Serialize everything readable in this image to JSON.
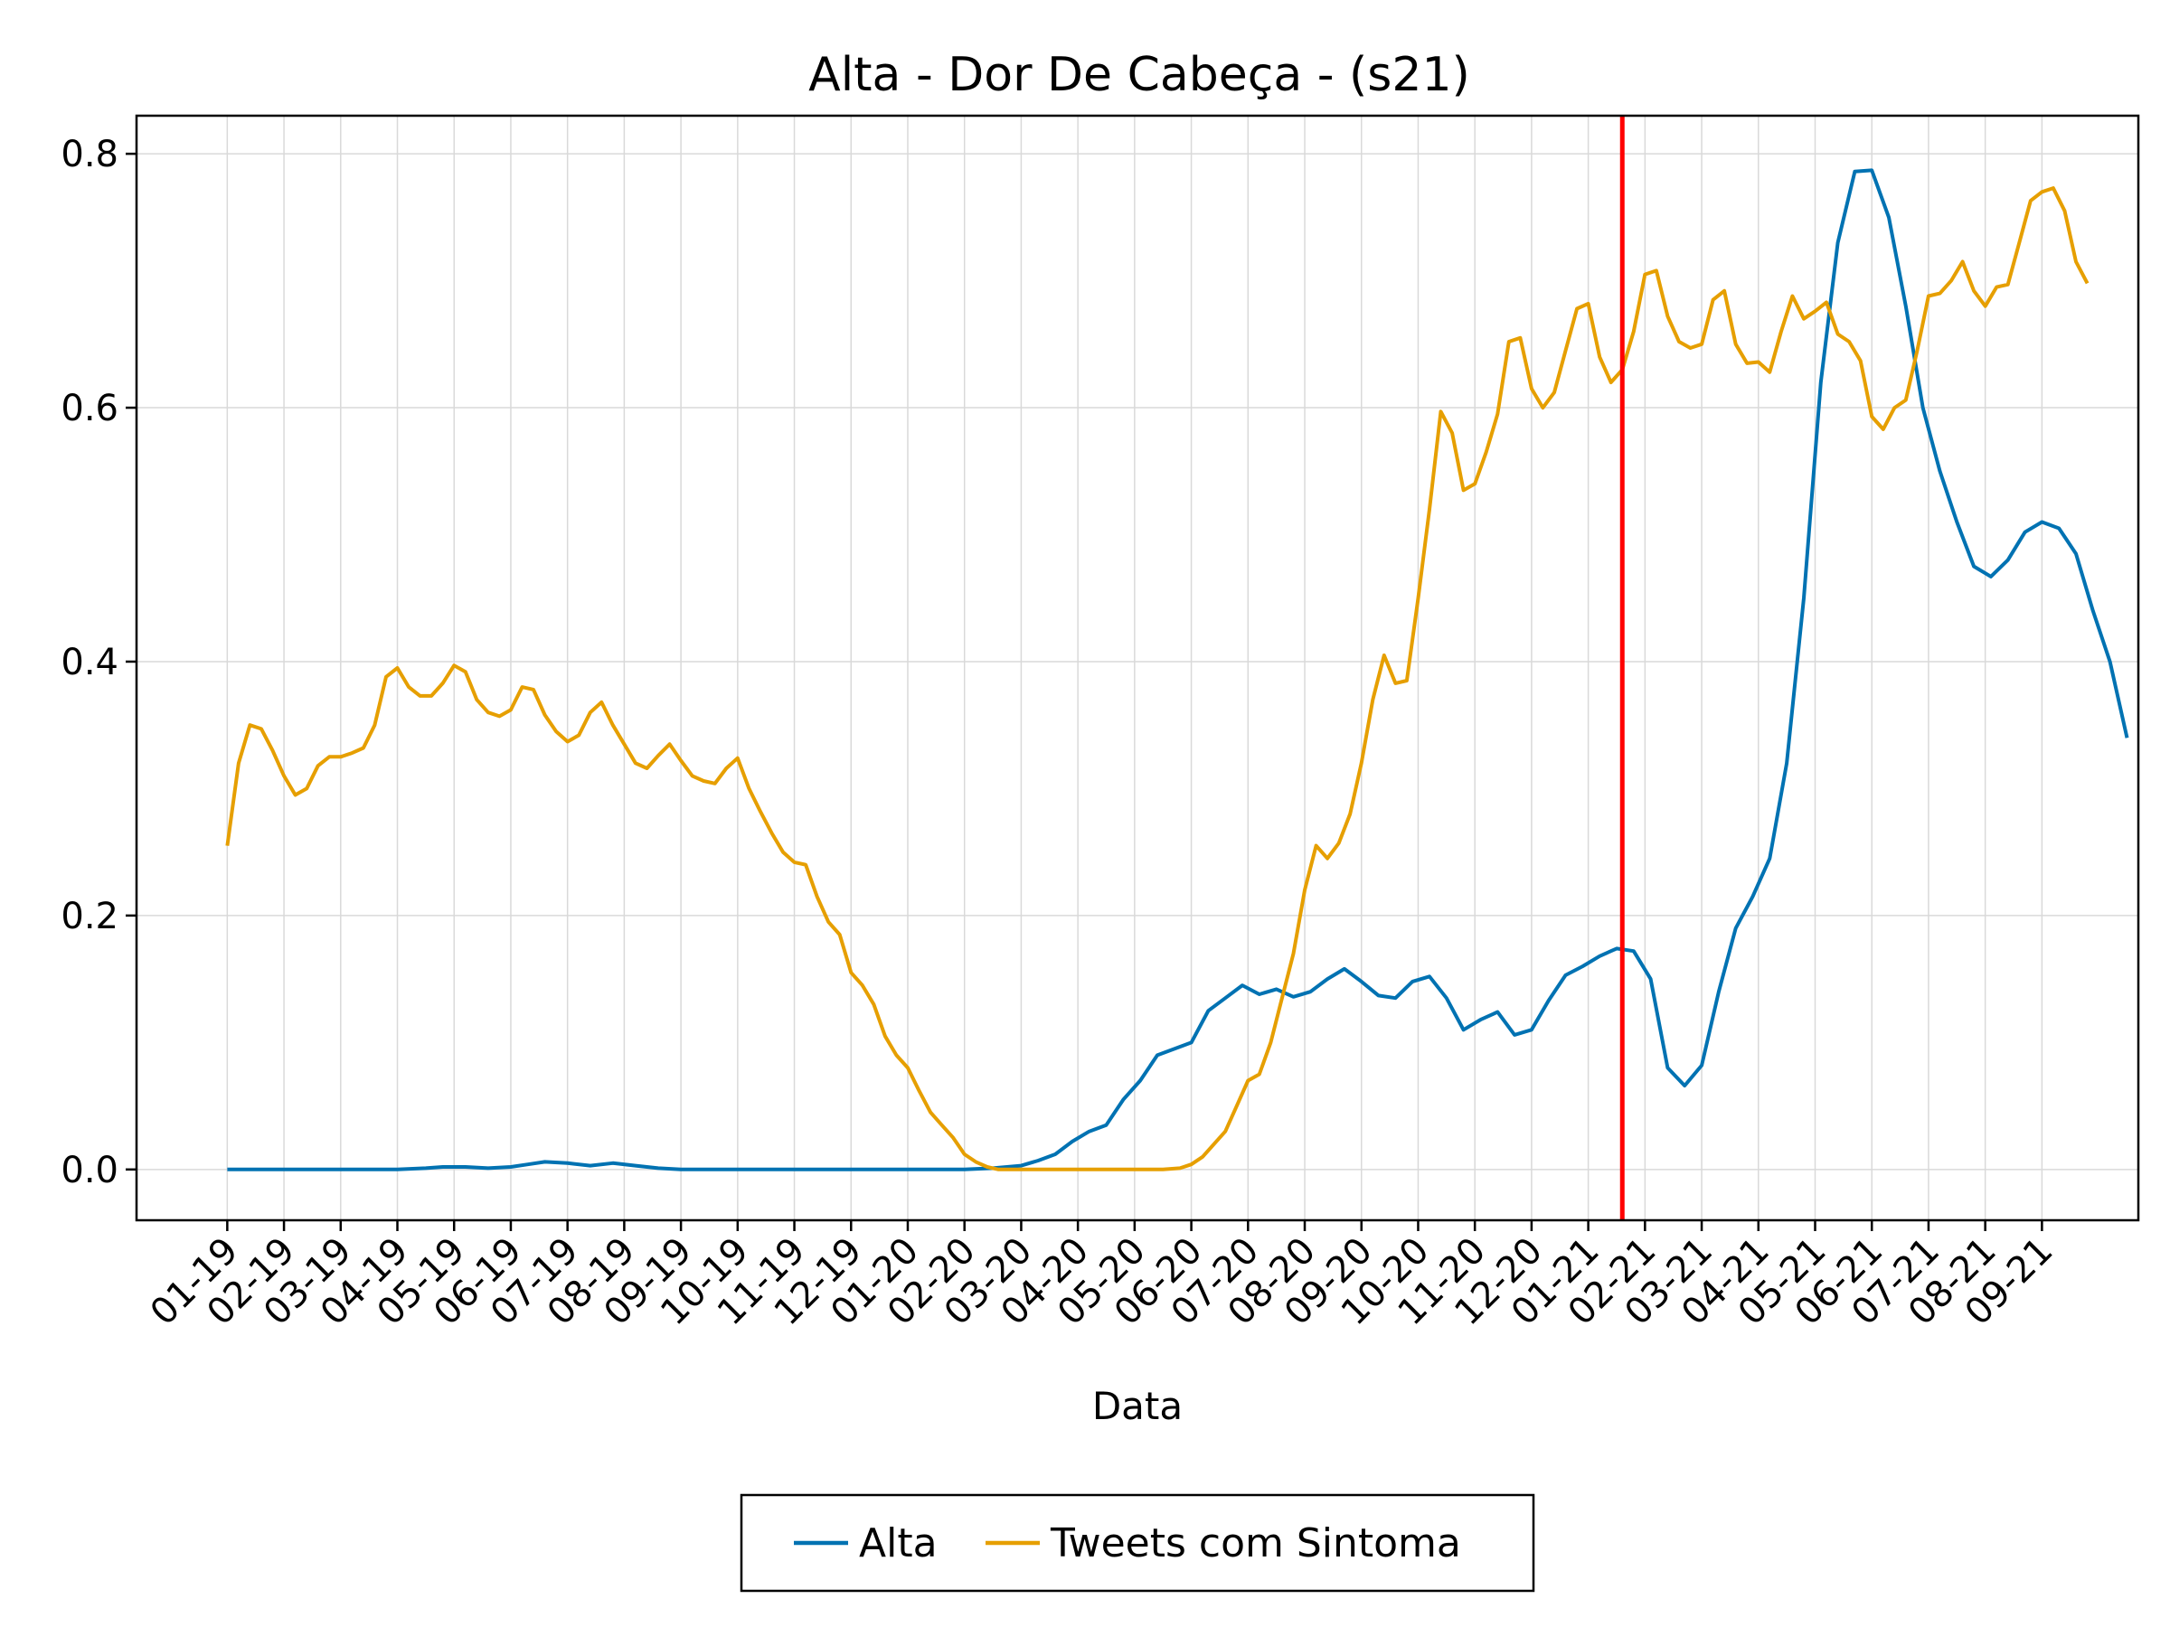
{
  "chart_data": {
    "type": "line",
    "title": "Alta - Dor De Cabeça - (s21)",
    "xlabel": "Data",
    "ylabel": "",
    "ylim": [
      -0.04,
      0.83
    ],
    "y_ticks": [
      "0.0",
      "0.2",
      "0.4",
      "0.6",
      "0.8"
    ],
    "y_tick_values": [
      0.0,
      0.2,
      0.4,
      0.6,
      0.8
    ],
    "x_range": [
      -1.6,
      33.7
    ],
    "categories": [
      "01-19",
      "02-19",
      "03-19",
      "04-19",
      "05-19",
      "06-19",
      "07-19",
      "08-19",
      "09-19",
      "10-19",
      "11-19",
      "12-19",
      "01-20",
      "02-20",
      "03-20",
      "04-20",
      "05-20",
      "06-20",
      "07-20",
      "08-20",
      "09-20",
      "10-20",
      "11-20",
      "12-20",
      "01-21",
      "02-21",
      "03-21",
      "04-21",
      "05-21",
      "06-21",
      "07-21",
      "08-21",
      "09-21"
    ],
    "vline": {
      "x": 24.6,
      "color": "#ff0000"
    },
    "grid": true,
    "legend_position": "bottom-center",
    "series": [
      {
        "name": "Alta",
        "color": "#0072b2",
        "points": [
          [
            0,
            0
          ],
          [
            0.5,
            0
          ],
          [
            1,
            0
          ],
          [
            1.5,
            0
          ],
          [
            2,
            0
          ],
          [
            2.5,
            0
          ],
          [
            3,
            0
          ],
          [
            3.5,
            0.001
          ],
          [
            3.8,
            0.002
          ],
          [
            4.2,
            0.002
          ],
          [
            4.6,
            0.001
          ],
          [
            5,
            0.002
          ],
          [
            5.3,
            0.004
          ],
          [
            5.6,
            0.006
          ],
          [
            6,
            0.005
          ],
          [
            6.4,
            0.003
          ],
          [
            6.8,
            0.005
          ],
          [
            7.2,
            0.003
          ],
          [
            7.6,
            0.001
          ],
          [
            8,
            0
          ],
          [
            8.5,
            0
          ],
          [
            9,
            0
          ],
          [
            10,
            0
          ],
          [
            11,
            0
          ],
          [
            12,
            0
          ],
          [
            12.5,
            0
          ],
          [
            13,
            0
          ],
          [
            13.5,
            0.001
          ],
          [
            14,
            0.003
          ],
          [
            14.3,
            0.007
          ],
          [
            14.6,
            0.012
          ],
          [
            14.9,
            0.022
          ],
          [
            15.2,
            0.03
          ],
          [
            15.5,
            0.035
          ],
          [
            15.8,
            0.055
          ],
          [
            16.1,
            0.07
          ],
          [
            16.4,
            0.09
          ],
          [
            16.7,
            0.095
          ],
          [
            17,
            0.1
          ],
          [
            17.3,
            0.125
          ],
          [
            17.6,
            0.135
          ],
          [
            17.9,
            0.145
          ],
          [
            18.2,
            0.138
          ],
          [
            18.5,
            0.142
          ],
          [
            18.8,
            0.136
          ],
          [
            19.1,
            0.14
          ],
          [
            19.4,
            0.15
          ],
          [
            19.7,
            0.158
          ],
          [
            20,
            0.148
          ],
          [
            20.3,
            0.137
          ],
          [
            20.6,
            0.135
          ],
          [
            20.9,
            0.148
          ],
          [
            21.2,
            0.152
          ],
          [
            21.5,
            0.135
          ],
          [
            21.8,
            0.11
          ],
          [
            22.1,
            0.118
          ],
          [
            22.4,
            0.124
          ],
          [
            22.7,
            0.106
          ],
          [
            23,
            0.11
          ],
          [
            23.3,
            0.133
          ],
          [
            23.6,
            0.153
          ],
          [
            23.9,
            0.16
          ],
          [
            24.2,
            0.168
          ],
          [
            24.5,
            0.174
          ],
          [
            24.8,
            0.172
          ],
          [
            25.1,
            0.15
          ],
          [
            25.4,
            0.08
          ],
          [
            25.7,
            0.066
          ],
          [
            26,
            0.082
          ],
          [
            26.3,
            0.14
          ],
          [
            26.6,
            0.19
          ],
          [
            26.9,
            0.215
          ],
          [
            27.2,
            0.245
          ],
          [
            27.5,
            0.32
          ],
          [
            27.8,
            0.45
          ],
          [
            28.1,
            0.62
          ],
          [
            28.4,
            0.73
          ],
          [
            28.7,
            0.786
          ],
          [
            29,
            0.787
          ],
          [
            29.3,
            0.75
          ],
          [
            29.6,
            0.68
          ],
          [
            29.9,
            0.6
          ],
          [
            30.2,
            0.55
          ],
          [
            30.5,
            0.51
          ],
          [
            30.8,
            0.475
          ],
          [
            31.1,
            0.467
          ],
          [
            31.4,
            0.48
          ],
          [
            31.7,
            0.502
          ],
          [
            32,
            0.51
          ],
          [
            32.3,
            0.505
          ],
          [
            32.6,
            0.485
          ],
          [
            32.9,
            0.44
          ],
          [
            33.2,
            0.4
          ],
          [
            33.5,
            0.34
          ]
        ]
      },
      {
        "name": "Tweets com Sintoma",
        "color": "#e69f00",
        "points": [
          [
            0,
            0.255
          ],
          [
            0.2,
            0.32
          ],
          [
            0.4,
            0.35
          ],
          [
            0.6,
            0.347
          ],
          [
            0.8,
            0.33
          ],
          [
            1,
            0.31
          ],
          [
            1.2,
            0.295
          ],
          [
            1.4,
            0.3
          ],
          [
            1.6,
            0.318
          ],
          [
            1.8,
            0.325
          ],
          [
            2,
            0.325
          ],
          [
            2.2,
            0.328
          ],
          [
            2.4,
            0.332
          ],
          [
            2.6,
            0.35
          ],
          [
            2.8,
            0.388
          ],
          [
            3,
            0.395
          ],
          [
            3.2,
            0.38
          ],
          [
            3.4,
            0.373
          ],
          [
            3.6,
            0.373
          ],
          [
            3.8,
            0.383
          ],
          [
            4,
            0.397
          ],
          [
            4.2,
            0.392
          ],
          [
            4.4,
            0.37
          ],
          [
            4.6,
            0.36
          ],
          [
            4.8,
            0.357
          ],
          [
            5,
            0.362
          ],
          [
            5.2,
            0.38
          ],
          [
            5.4,
            0.378
          ],
          [
            5.6,
            0.358
          ],
          [
            5.8,
            0.345
          ],
          [
            6,
            0.337
          ],
          [
            6.2,
            0.342
          ],
          [
            6.4,
            0.36
          ],
          [
            6.6,
            0.368
          ],
          [
            6.8,
            0.35
          ],
          [
            7,
            0.335
          ],
          [
            7.2,
            0.32
          ],
          [
            7.4,
            0.316
          ],
          [
            7.6,
            0.326
          ],
          [
            7.8,
            0.335
          ],
          [
            8,
            0.322
          ],
          [
            8.2,
            0.31
          ],
          [
            8.4,
            0.306
          ],
          [
            8.6,
            0.304
          ],
          [
            8.8,
            0.316
          ],
          [
            9,
            0.324
          ],
          [
            9.2,
            0.3
          ],
          [
            9.4,
            0.282
          ],
          [
            9.6,
            0.265
          ],
          [
            9.8,
            0.25
          ],
          [
            10,
            0.242
          ],
          [
            10.2,
            0.24
          ],
          [
            10.4,
            0.215
          ],
          [
            10.6,
            0.195
          ],
          [
            10.8,
            0.185
          ],
          [
            11,
            0.155
          ],
          [
            11.2,
            0.145
          ],
          [
            11.4,
            0.13
          ],
          [
            11.6,
            0.105
          ],
          [
            11.8,
            0.09
          ],
          [
            12,
            0.08
          ],
          [
            12.2,
            0.062
          ],
          [
            12.4,
            0.045
          ],
          [
            12.6,
            0.035
          ],
          [
            12.8,
            0.025
          ],
          [
            13,
            0.012
          ],
          [
            13.2,
            0.006
          ],
          [
            13.4,
            0.002
          ],
          [
            13.6,
            0
          ],
          [
            14,
            0
          ],
          [
            15,
            0
          ],
          [
            16,
            0
          ],
          [
            16.5,
            0
          ],
          [
            16.8,
            0.001
          ],
          [
            17,
            0.004
          ],
          [
            17.2,
            0.01
          ],
          [
            17.4,
            0.02
          ],
          [
            17.6,
            0.03
          ],
          [
            17.8,
            0.05
          ],
          [
            18,
            0.07
          ],
          [
            18.2,
            0.075
          ],
          [
            18.4,
            0.1
          ],
          [
            18.6,
            0.135
          ],
          [
            18.8,
            0.17
          ],
          [
            19,
            0.22
          ],
          [
            19.2,
            0.255
          ],
          [
            19.4,
            0.245
          ],
          [
            19.6,
            0.257
          ],
          [
            19.8,
            0.28
          ],
          [
            20,
            0.32
          ],
          [
            20.2,
            0.37
          ],
          [
            20.4,
            0.405
          ],
          [
            20.6,
            0.383
          ],
          [
            20.8,
            0.385
          ],
          [
            21,
            0.45
          ],
          [
            21.2,
            0.52
          ],
          [
            21.4,
            0.597
          ],
          [
            21.6,
            0.58
          ],
          [
            21.8,
            0.535
          ],
          [
            22,
            0.54
          ],
          [
            22.2,
            0.565
          ],
          [
            22.4,
            0.595
          ],
          [
            22.6,
            0.652
          ],
          [
            22.8,
            0.655
          ],
          [
            23,
            0.615
          ],
          [
            23.2,
            0.6
          ],
          [
            23.4,
            0.612
          ],
          [
            23.6,
            0.645
          ],
          [
            23.8,
            0.678
          ],
          [
            24,
            0.682
          ],
          [
            24.2,
            0.64
          ],
          [
            24.4,
            0.62
          ],
          [
            24.6,
            0.63
          ],
          [
            24.8,
            0.66
          ],
          [
            25,
            0.705
          ],
          [
            25.2,
            0.708
          ],
          [
            25.4,
            0.672
          ],
          [
            25.6,
            0.652
          ],
          [
            25.8,
            0.647
          ],
          [
            26,
            0.65
          ],
          [
            26.2,
            0.685
          ],
          [
            26.4,
            0.692
          ],
          [
            26.6,
            0.65
          ],
          [
            26.8,
            0.635
          ],
          [
            27,
            0.636
          ],
          [
            27.2,
            0.628
          ],
          [
            27.4,
            0.66
          ],
          [
            27.6,
            0.688
          ],
          [
            27.8,
            0.67
          ],
          [
            28,
            0.676
          ],
          [
            28.2,
            0.683
          ],
          [
            28.4,
            0.658
          ],
          [
            28.6,
            0.652
          ],
          [
            28.8,
            0.637
          ],
          [
            29,
            0.593
          ],
          [
            29.2,
            0.583
          ],
          [
            29.4,
            0.6
          ],
          [
            29.6,
            0.606
          ],
          [
            29.8,
            0.645
          ],
          [
            30,
            0.688
          ],
          [
            30.2,
            0.69
          ],
          [
            30.4,
            0.7
          ],
          [
            30.6,
            0.715
          ],
          [
            30.8,
            0.692
          ],
          [
            31,
            0.68
          ],
          [
            31.2,
            0.695
          ],
          [
            31.4,
            0.697
          ],
          [
            31.6,
            0.73
          ],
          [
            31.8,
            0.763
          ],
          [
            32,
            0.77
          ],
          [
            32.2,
            0.773
          ],
          [
            32.4,
            0.755
          ],
          [
            32.6,
            0.715
          ],
          [
            32.8,
            0.698
          ]
        ]
      }
    ]
  }
}
